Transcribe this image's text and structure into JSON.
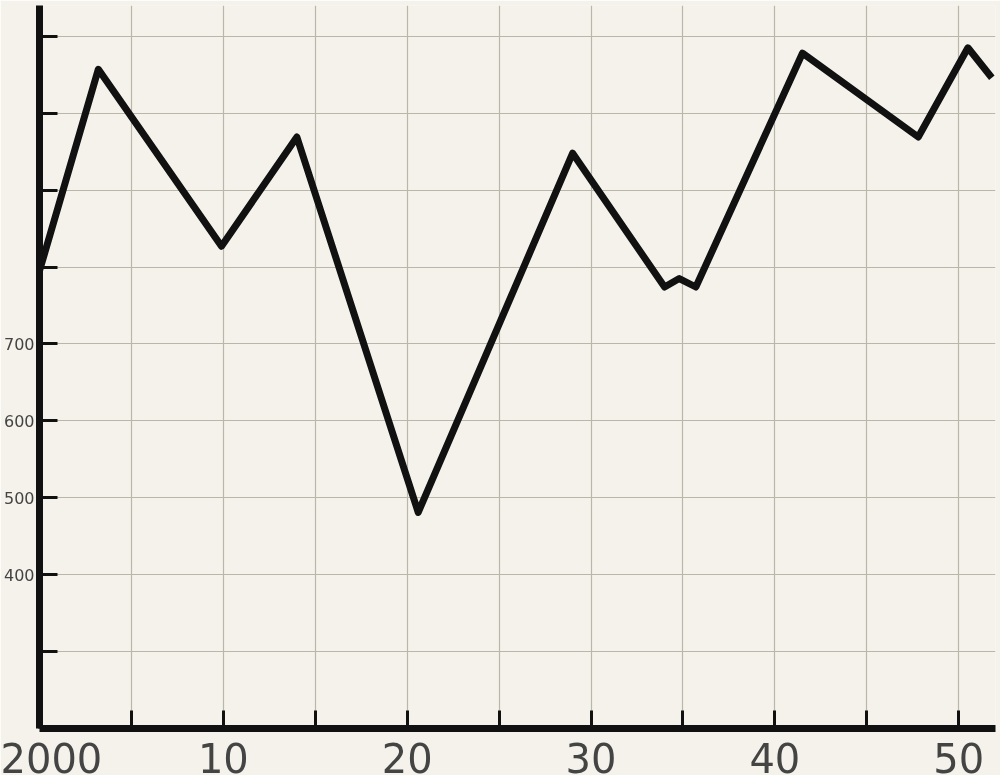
{
  "chart_data": {
    "type": "line",
    "x": [
      2000,
      2003.2,
      2009.9,
      2014,
      2020.6,
      2029,
      2034,
      2034.8,
      2035.7,
      2041.5,
      2047.8,
      2050.5,
      2051.8
    ],
    "series": [
      {
        "color": "#111111",
        "values": [
          795,
          1057,
          827,
          969,
          481,
          948,
          774,
          785,
          774,
          1078,
          969,
          1085,
          1046
        ]
      }
    ],
    "xlim": [
      2000,
      2052
    ],
    "ylim": [
      200,
      1140
    ],
    "xticks": [
      {
        "value": 2000,
        "label": "2000"
      },
      {
        "value": 2005,
        "label": null
      },
      {
        "value": 2010,
        "label": "10"
      },
      {
        "value": 2015,
        "label": null
      },
      {
        "value": 2020,
        "label": "20"
      },
      {
        "value": 2025,
        "label": null
      },
      {
        "value": 2030,
        "label": "30"
      },
      {
        "value": 2035,
        "label": null
      },
      {
        "value": 2040,
        "label": "40"
      },
      {
        "value": 2045,
        "label": null
      },
      {
        "value": 2050,
        "label": "50"
      }
    ],
    "yticks": [
      {
        "value": 300,
        "label": null
      },
      400,
      500,
      600,
      700,
      {
        "value": 800,
        "label": null
      },
      {
        "value": 900,
        "label": null
      },
      {
        "value": 1000,
        "label": null
      },
      {
        "value": 1100,
        "label": null
      }
    ],
    "grid": true,
    "marker": "none",
    "line_style": "solid"
  }
}
